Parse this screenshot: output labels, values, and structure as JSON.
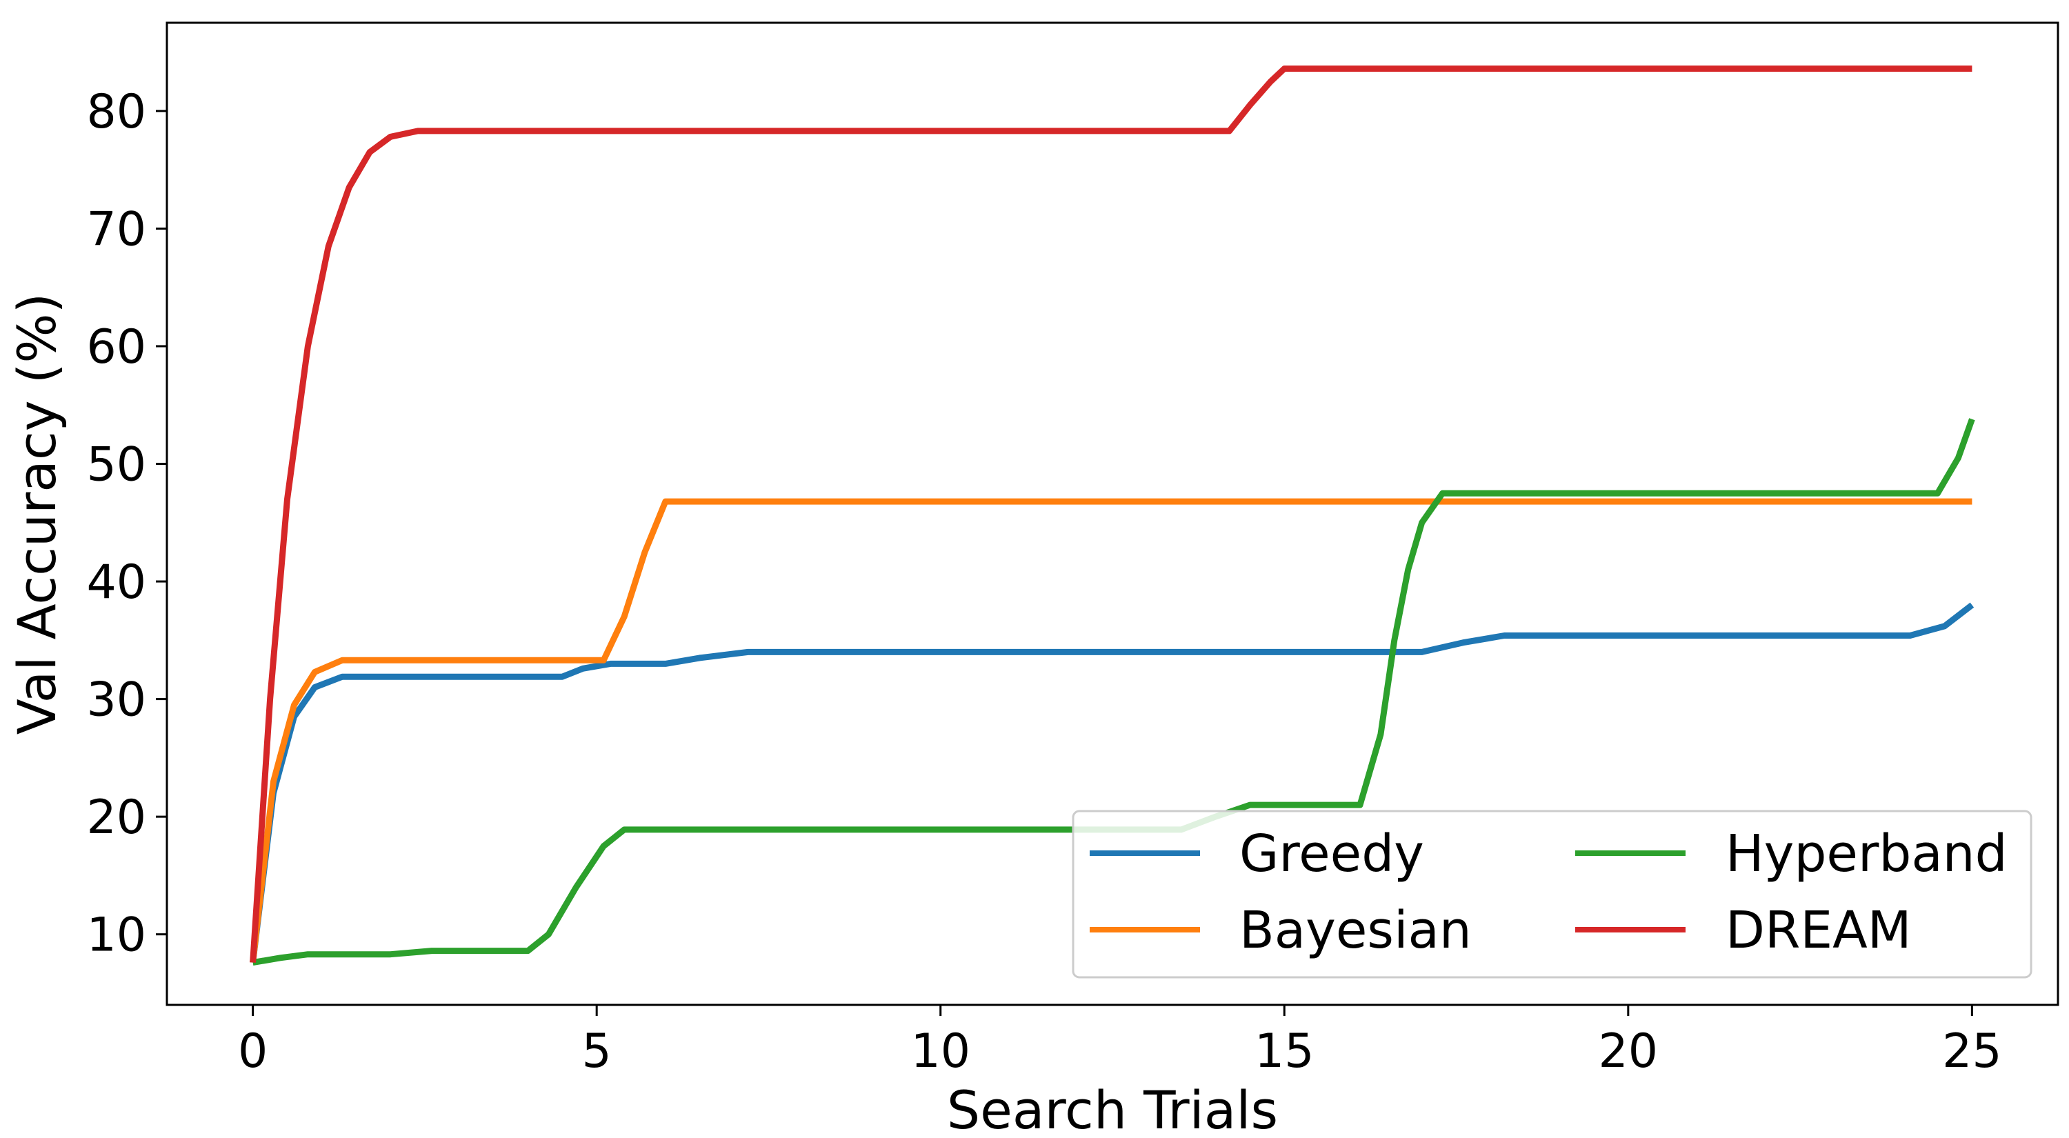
{
  "chart_data": {
    "type": "line",
    "title": "",
    "xlabel": "Search Trials",
    "ylabel": "Val Accuracy (%)",
    "xlim": [
      -1.25,
      26.25
    ],
    "ylim": [
      4.0,
      87.5
    ],
    "xticks": [
      0,
      5,
      10,
      15,
      20,
      25
    ],
    "yticks": [
      10,
      20,
      30,
      40,
      50,
      60,
      70,
      80
    ],
    "grid": false,
    "legend": {
      "placement": "lower-right",
      "columns": 2
    },
    "series": [
      {
        "name": "Greedy",
        "color": "#1f77b4",
        "points": [
          [
            0,
            7.6
          ],
          [
            0.3,
            22.0
          ],
          [
            0.6,
            28.5
          ],
          [
            0.9,
            31.0
          ],
          [
            1.3,
            31.9
          ],
          [
            4.5,
            31.9
          ],
          [
            4.8,
            32.6
          ],
          [
            5.2,
            33.0
          ],
          [
            6.0,
            33.0
          ],
          [
            6.5,
            33.5
          ],
          [
            7.2,
            34.0
          ],
          [
            17.0,
            34.0
          ],
          [
            17.6,
            34.8
          ],
          [
            18.2,
            35.4
          ],
          [
            24.1,
            35.4
          ],
          [
            24.6,
            36.2
          ],
          [
            25.0,
            38.0
          ]
        ]
      },
      {
        "name": "Bayesian",
        "color": "#ff7f0e",
        "points": [
          [
            0,
            7.6
          ],
          [
            0.3,
            23.0
          ],
          [
            0.6,
            29.5
          ],
          [
            0.9,
            32.3
          ],
          [
            1.3,
            33.3
          ],
          [
            5.1,
            33.3
          ],
          [
            5.4,
            37.0
          ],
          [
            5.7,
            42.5
          ],
          [
            6.0,
            46.8
          ],
          [
            25.0,
            46.8
          ]
        ]
      },
      {
        "name": "Hyperband",
        "color": "#2ca02c",
        "points": [
          [
            0,
            7.6
          ],
          [
            0.4,
            8.0
          ],
          [
            0.8,
            8.3
          ],
          [
            2.0,
            8.3
          ],
          [
            2.6,
            8.6
          ],
          [
            4.0,
            8.6
          ],
          [
            4.3,
            10.0
          ],
          [
            4.7,
            14.0
          ],
          [
            5.1,
            17.5
          ],
          [
            5.4,
            18.9
          ],
          [
            13.5,
            18.9
          ],
          [
            14.0,
            20.0
          ],
          [
            14.5,
            21.0
          ],
          [
            16.1,
            21.0
          ],
          [
            16.4,
            27.0
          ],
          [
            16.6,
            35.0
          ],
          [
            16.8,
            41.0
          ],
          [
            17.0,
            45.0
          ],
          [
            17.3,
            47.5
          ],
          [
            24.5,
            47.5
          ],
          [
            24.8,
            50.5
          ],
          [
            25.0,
            53.8
          ]
        ]
      },
      {
        "name": "DREAM",
        "color": "#d62728",
        "points": [
          [
            0,
            7.6
          ],
          [
            0.25,
            30.0
          ],
          [
            0.5,
            47.0
          ],
          [
            0.8,
            60.0
          ],
          [
            1.1,
            68.5
          ],
          [
            1.4,
            73.5
          ],
          [
            1.7,
            76.5
          ],
          [
            2.0,
            77.8
          ],
          [
            2.4,
            78.3
          ],
          [
            14.2,
            78.3
          ],
          [
            14.5,
            80.5
          ],
          [
            14.8,
            82.5
          ],
          [
            15.0,
            83.6
          ],
          [
            25.0,
            83.6
          ]
        ]
      }
    ]
  }
}
